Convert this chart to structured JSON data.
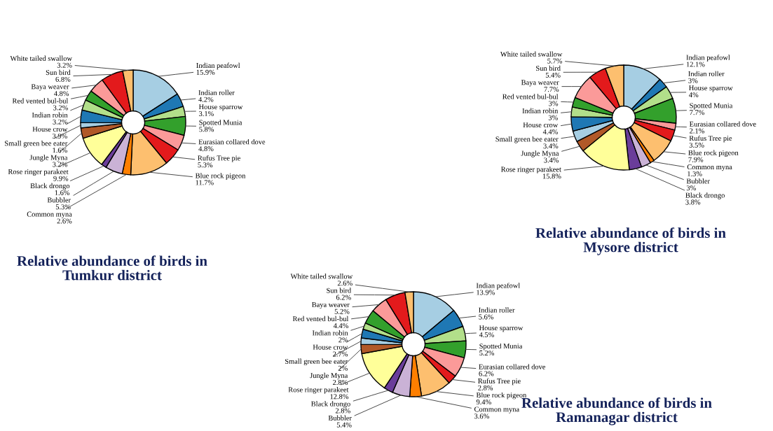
{
  "chart_data": [
    {
      "type": "donut",
      "title": "Relative abundance of birds in\nTumkur district",
      "categories": [
        "Indian peafowl",
        "Indian roller",
        "House sparrow",
        "Spotted Munia",
        "Eurasian collared dove",
        "Rufus Tree pie",
        "Blue rock pigeon",
        "Common myna",
        "Bubbler",
        "Black drongo",
        "Rose ringer parakeet",
        "Jungle Myna",
        "Small green bee eater",
        "House crow",
        "Indian robin",
        "Red vented bul-bul",
        "Baya weaver",
        "Sun bird",
        "White tailed swallow"
      ],
      "values": [
        15.9,
        4.2,
        3.1,
        5.8,
        4.8,
        5.3,
        11.7,
        2.6,
        5.3,
        1.6,
        9.9,
        3.2,
        1.6,
        3.9,
        3.2,
        3.2,
        4.8,
        6.8,
        3.2
      ],
      "value_labels": [
        "15.9%",
        "4.2%",
        "3.1%",
        "5.8%",
        "4.8%",
        "5.3%",
        "11.7%",
        "2.6%",
        "5.3%",
        "1.6%",
        "9.9%",
        "3.2%",
        "1.6%",
        "3.9%",
        "3.2%",
        "3.2%",
        "4.8%",
        "6.8%",
        "3.2%"
      ],
      "colors": [
        "#a6cee3",
        "#1f78b4",
        "#b2df8a",
        "#33a02c",
        "#fb9a99",
        "#e31a1c",
        "#fdbf6f",
        "#ff7f00",
        "#cab2d6",
        "#6a3d9a",
        "#ffff99",
        "#b15928",
        "#a6cee3",
        "#1f78b4",
        "#b2df8a",
        "#33a02c",
        "#fb9a99",
        "#e31a1c",
        "#fdbf6f"
      ]
    },
    {
      "type": "donut",
      "title": "Relative abundance of birds in\nMysore district",
      "categories": [
        "Indian peafowl",
        "Indian roller",
        "House sparrow",
        "Spotted Munia",
        "Eurasian collared dove",
        "Rufus Tree pie",
        "Blue rock pigeon",
        "Common myna",
        "Bubbler",
        "Black drongo",
        "Rose ringer parakeet",
        "Jungle Myna",
        "Small green bee eater",
        "House crow",
        "Indian robin",
        "Red vented bul-bul",
        "Baya weaver",
        "Sun bird",
        "White tailed swallow"
      ],
      "values": [
        12.1,
        3,
        4,
        7.7,
        2.1,
        3.5,
        7.9,
        1.3,
        3,
        3.8,
        15.8,
        3.4,
        3.4,
        4.4,
        3,
        3,
        7.7,
        5.4,
        5.7
      ],
      "value_labels": [
        "12.1%",
        "3%",
        "4%",
        "7.7%",
        "2.1%",
        "3.5%",
        "7.9%",
        "1.3%",
        "3%",
        "3.8%",
        "15.8%",
        "3.4%",
        "3.4%",
        "4.4%",
        "3%",
        "3%",
        "7.7%",
        "5.4%",
        "5.7%"
      ],
      "colors": [
        "#a6cee3",
        "#1f78b4",
        "#b2df8a",
        "#33a02c",
        "#fb9a99",
        "#e31a1c",
        "#fdbf6f",
        "#ff7f00",
        "#cab2d6",
        "#6a3d9a",
        "#ffff99",
        "#b15928",
        "#a6cee3",
        "#1f78b4",
        "#b2df8a",
        "#33a02c",
        "#fb9a99",
        "#e31a1c",
        "#fdbf6f"
      ]
    },
    {
      "type": "donut",
      "title": "Relative abundance of birds in\nRamanagar district",
      "categories": [
        "Indian peafowl",
        "Indian roller",
        "House sparrow",
        "Spotted Munia",
        "Eurasian collared dove",
        "Rufus Tree pie",
        "Blue rock pigeon",
        "Common myna",
        "Bubbler",
        "Black drongo",
        "Rose ringer parakeet",
        "Jungle Myna",
        "Small green bee eater",
        "House crow",
        "Indian robin",
        "Red vented bul-bul",
        "Baya weaver",
        "Sun bird",
        "White tailed swallow"
      ],
      "values": [
        13.9,
        5.6,
        4.5,
        5.2,
        6.2,
        2.8,
        9.4,
        3.6,
        5.4,
        2.8,
        12.8,
        2.8,
        2,
        2.7,
        2,
        4.4,
        5.2,
        6.2,
        2.6
      ],
      "value_labels": [
        "13.9%",
        "5.6%",
        "4.5%",
        "5.2%",
        "6.2%",
        "2.8%",
        "9.4%",
        "3.6%",
        "5.4%",
        "2.8%",
        "12.8%",
        "2.8%",
        "2%",
        "2.7%",
        "2%",
        "4.4%",
        "5.2%",
        "6.2%",
        "2.6%"
      ],
      "colors": [
        "#a6cee3",
        "#1f78b4",
        "#b2df8a",
        "#33a02c",
        "#fb9a99",
        "#e31a1c",
        "#fdbf6f",
        "#ff7f00",
        "#cab2d6",
        "#6a3d9a",
        "#ffff99",
        "#b15928",
        "#a6cee3",
        "#1f78b4",
        "#b2df8a",
        "#33a02c",
        "#fb9a99",
        "#e31a1c",
        "#fdbf6f"
      ]
    }
  ]
}
